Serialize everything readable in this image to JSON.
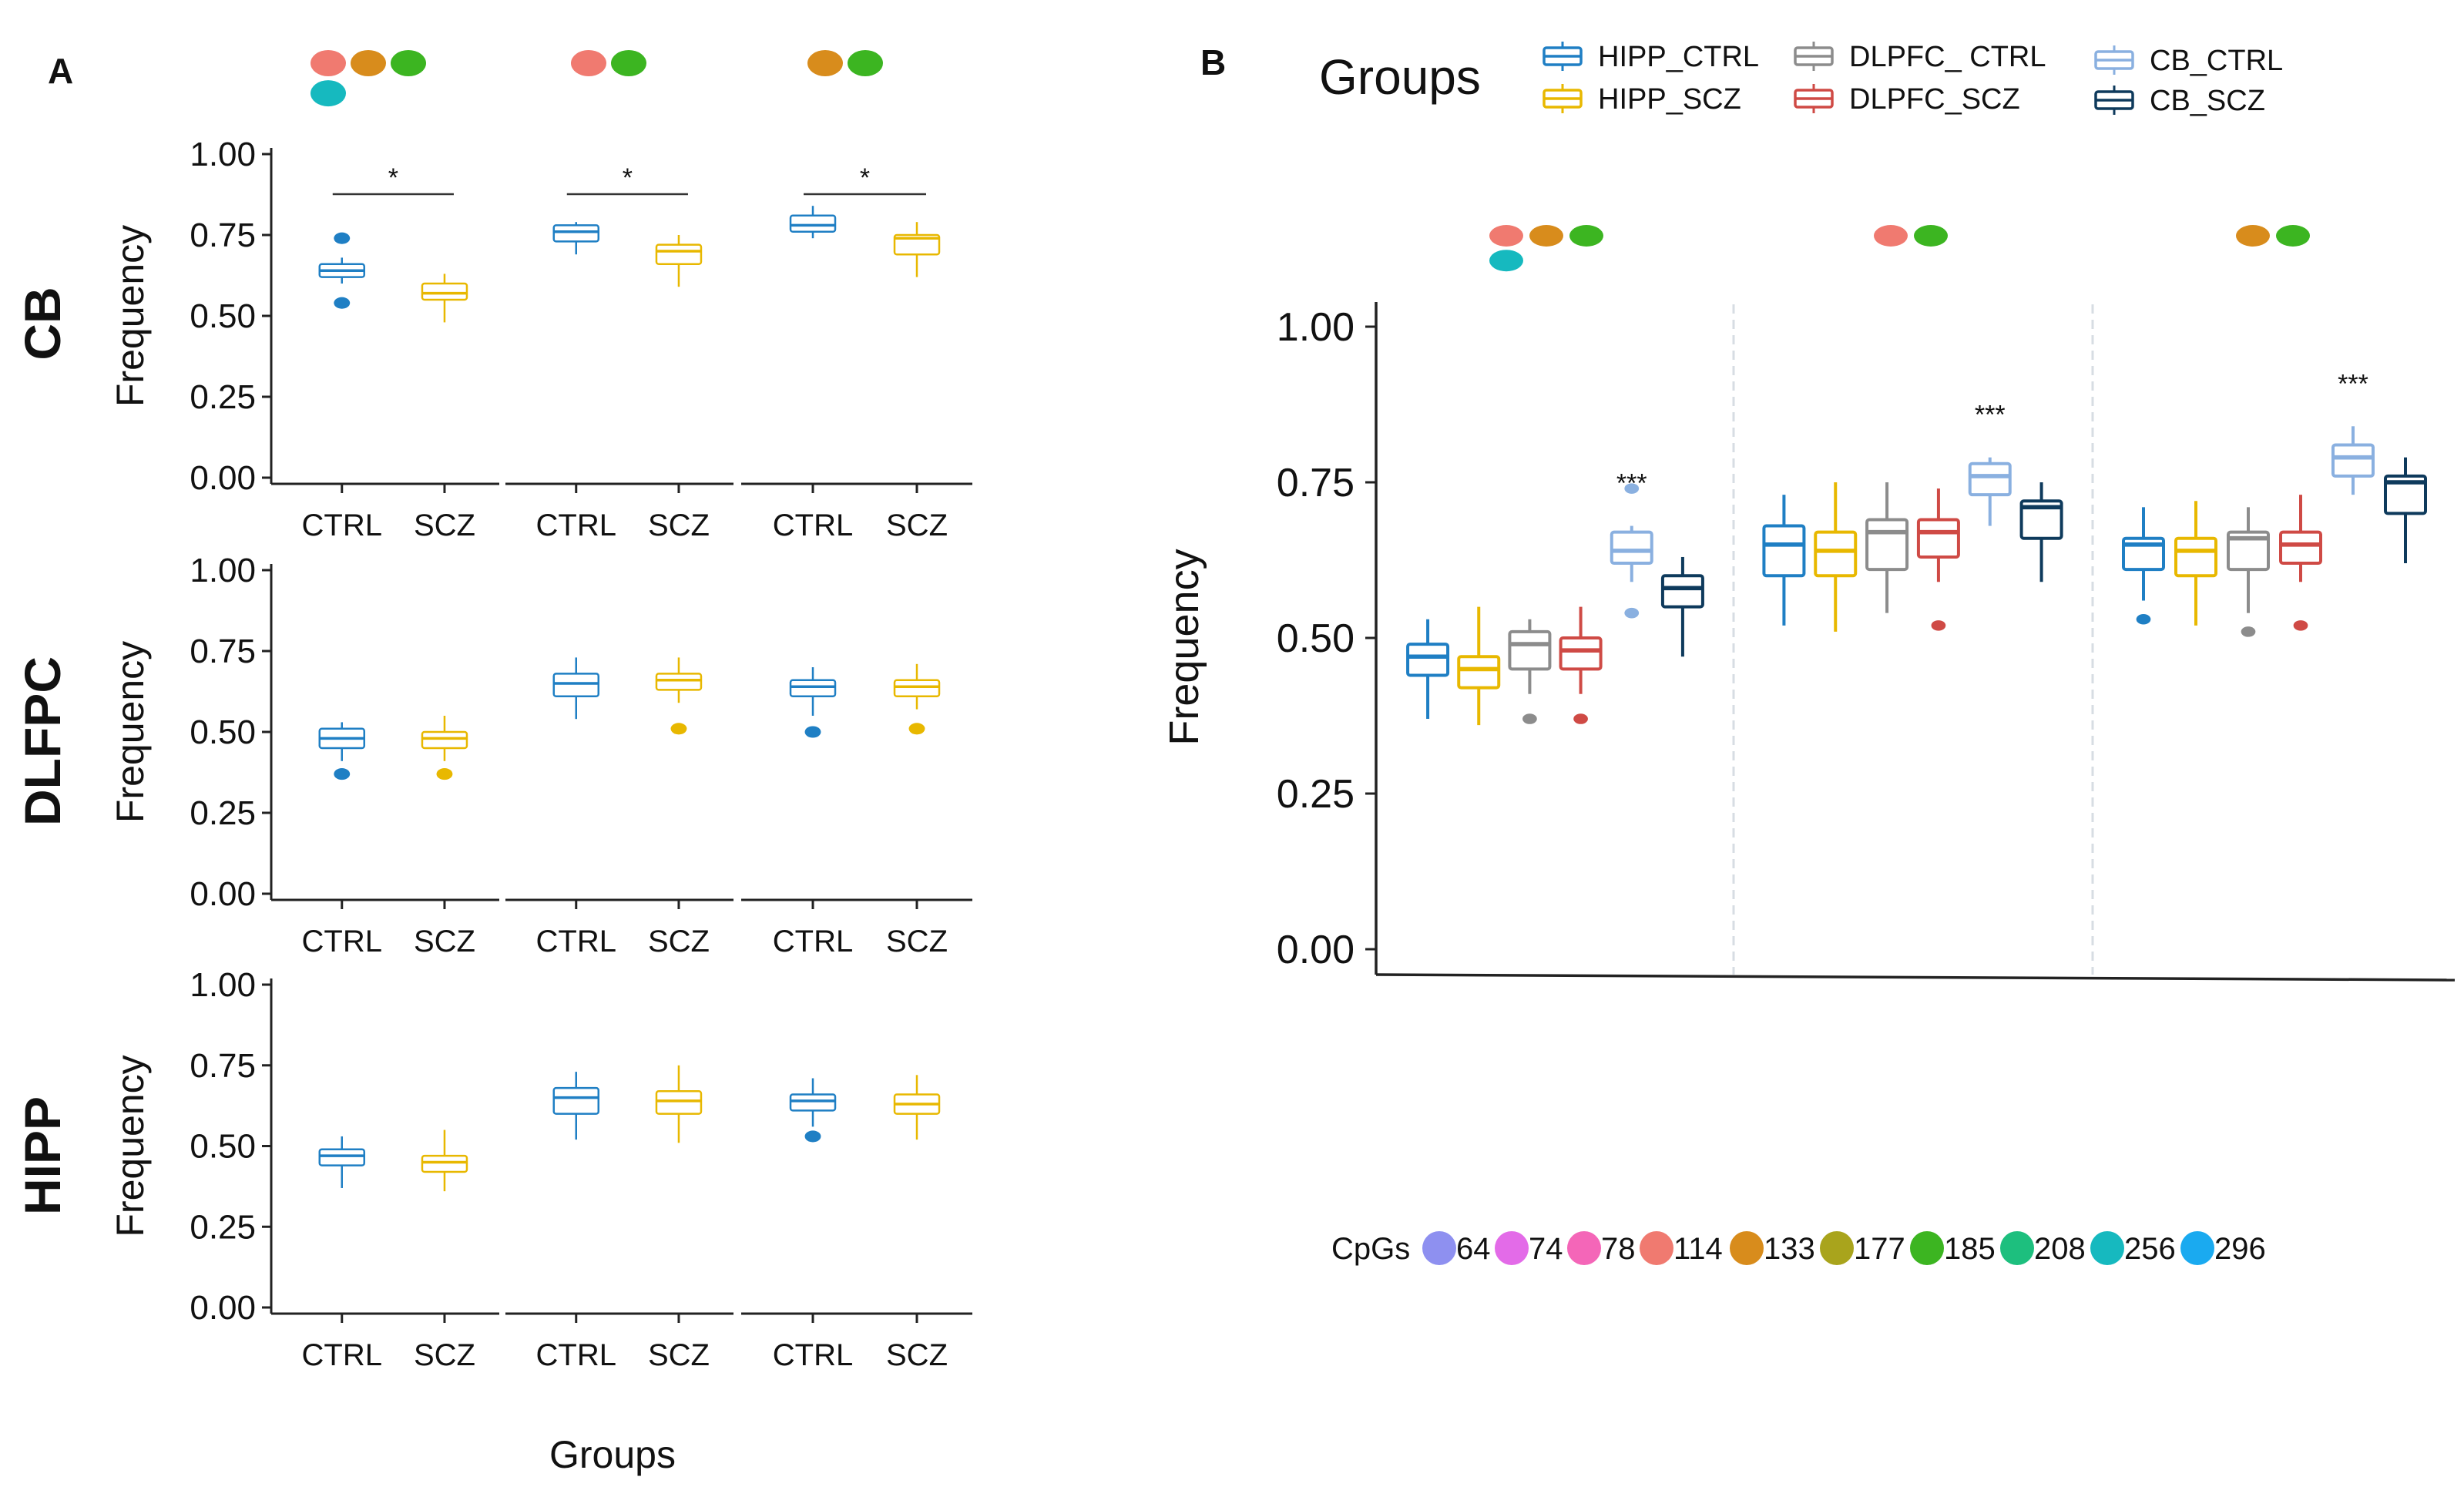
{
  "panel_a": {
    "letter": "A",
    "x_axis_title": "Groups",
    "y_axis_title": "Frequency"
  },
  "panel_b": {
    "letter": "B",
    "legend_title": "Groups",
    "y_axis_title": "Frequency"
  },
  "cpg_legend": {
    "title": "CpGs",
    "items": [
      {
        "label": "64",
        "color": "#8e90f0"
      },
      {
        "label": "74",
        "color": "#e36be8"
      },
      {
        "label": "78",
        "color": "#f466b8"
      },
      {
        "label": "114",
        "color": "#f07a70"
      },
      {
        "label": "133",
        "color": "#d88c1c"
      },
      {
        "label": "177",
        "color": "#a9a41c"
      },
      {
        "label": "185",
        "color": "#3cb521"
      },
      {
        "label": "208",
        "color": "#1dbf7e"
      },
      {
        "label": "256",
        "color": "#16b9bf"
      },
      {
        "label": "296",
        "color": "#1aaaf0"
      }
    ]
  },
  "chart_data": [
    {
      "type": "box",
      "panel": "A",
      "ylabel": "Frequency",
      "xlabel": "Groups",
      "ylim": [
        0,
        1
      ],
      "yticks": [
        "0.00",
        "0.25",
        "0.50",
        "0.75",
        "1.00"
      ],
      "facet_cpg_sets": [
        [
          "114",
          "133",
          "185",
          "256"
        ],
        [
          "114",
          "185"
        ],
        [
          "133",
          "185"
        ]
      ],
      "categories": [
        "CTRL",
        "SCZ"
      ],
      "group_colors": {
        "CTRL": "#1f7fc4",
        "SCZ": "#e8b800"
      },
      "rows": [
        {
          "region": "CB",
          "facets": [
            {
              "sig": "*",
              "boxes": [
                {
                  "group": "CTRL",
                  "min": 0.6,
                  "q1": 0.62,
                  "median": 0.64,
                  "q3": 0.66,
                  "max": 0.68,
                  "outliers": [
                    0.74,
                    0.54
                  ]
                },
                {
                  "group": "SCZ",
                  "min": 0.48,
                  "q1": 0.55,
                  "median": 0.57,
                  "q3": 0.6,
                  "max": 0.63,
                  "outliers": []
                }
              ]
            },
            {
              "sig": "*",
              "boxes": [
                {
                  "group": "CTRL",
                  "min": 0.69,
                  "q1": 0.73,
                  "median": 0.76,
                  "q3": 0.78,
                  "max": 0.79,
                  "outliers": []
                },
                {
                  "group": "SCZ",
                  "min": 0.59,
                  "q1": 0.66,
                  "median": 0.7,
                  "q3": 0.72,
                  "max": 0.75,
                  "outliers": []
                }
              ]
            },
            {
              "sig": "*",
              "boxes": [
                {
                  "group": "CTRL",
                  "min": 0.74,
                  "q1": 0.76,
                  "median": 0.78,
                  "q3": 0.81,
                  "max": 0.84,
                  "outliers": []
                },
                {
                  "group": "SCZ",
                  "min": 0.62,
                  "q1": 0.69,
                  "median": 0.74,
                  "q3": 0.75,
                  "max": 0.79,
                  "outliers": []
                }
              ]
            }
          ]
        },
        {
          "region": "DLFPC",
          "facets": [
            {
              "sig": "",
              "boxes": [
                {
                  "group": "CTRL",
                  "min": 0.41,
                  "q1": 0.45,
                  "median": 0.48,
                  "q3": 0.51,
                  "max": 0.53,
                  "outliers": [
                    0.37
                  ]
                },
                {
                  "group": "SCZ",
                  "min": 0.41,
                  "q1": 0.45,
                  "median": 0.48,
                  "q3": 0.5,
                  "max": 0.55,
                  "outliers": [
                    0.37
                  ]
                }
              ]
            },
            {
              "sig": "",
              "boxes": [
                {
                  "group": "CTRL",
                  "min": 0.54,
                  "q1": 0.61,
                  "median": 0.65,
                  "q3": 0.68,
                  "max": 0.73,
                  "outliers": []
                },
                {
                  "group": "SCZ",
                  "min": 0.59,
                  "q1": 0.63,
                  "median": 0.66,
                  "q3": 0.68,
                  "max": 0.73,
                  "outliers": [
                    0.51
                  ]
                }
              ]
            },
            {
              "sig": "",
              "boxes": [
                {
                  "group": "CTRL",
                  "min": 0.55,
                  "q1": 0.61,
                  "median": 0.64,
                  "q3": 0.66,
                  "max": 0.7,
                  "outliers": [
                    0.5
                  ]
                },
                {
                  "group": "SCZ",
                  "min": 0.57,
                  "q1": 0.61,
                  "median": 0.64,
                  "q3": 0.66,
                  "max": 0.71,
                  "outliers": [
                    0.51
                  ]
                }
              ]
            }
          ]
        },
        {
          "region": "HIPP",
          "facets": [
            {
              "sig": "",
              "boxes": [
                {
                  "group": "CTRL",
                  "min": 0.37,
                  "q1": 0.44,
                  "median": 0.47,
                  "q3": 0.49,
                  "max": 0.53,
                  "outliers": []
                },
                {
                  "group": "SCZ",
                  "min": 0.36,
                  "q1": 0.42,
                  "median": 0.45,
                  "q3": 0.47,
                  "max": 0.55,
                  "outliers": []
                }
              ]
            },
            {
              "sig": "",
              "boxes": [
                {
                  "group": "CTRL",
                  "min": 0.52,
                  "q1": 0.6,
                  "median": 0.65,
                  "q3": 0.68,
                  "max": 0.73,
                  "outliers": []
                },
                {
                  "group": "SCZ",
                  "min": 0.51,
                  "q1": 0.6,
                  "median": 0.64,
                  "q3": 0.67,
                  "max": 0.75,
                  "outliers": []
                }
              ]
            },
            {
              "sig": "",
              "boxes": [
                {
                  "group": "CTRL",
                  "min": 0.56,
                  "q1": 0.61,
                  "median": 0.64,
                  "q3": 0.66,
                  "max": 0.71,
                  "outliers": [
                    0.53
                  ]
                },
                {
                  "group": "SCZ",
                  "min": 0.52,
                  "q1": 0.6,
                  "median": 0.63,
                  "q3": 0.66,
                  "max": 0.72,
                  "outliers": []
                }
              ]
            }
          ]
        }
      ]
    },
    {
      "type": "box",
      "panel": "B",
      "ylabel": "Frequency",
      "ylim": [
        0,
        1
      ],
      "yticks": [
        "0.00",
        "0.25",
        "0.50",
        "0.75",
        "1.00"
      ],
      "legend": {
        "title": "Groups",
        "position": "top",
        "entries": [
          {
            "name": "HIPP_CTRL",
            "color": "#1f7fc4"
          },
          {
            "name": "HIPP_SCZ",
            "color": "#e8b800"
          },
          {
            "name": "DLPFC_ CTRL",
            "color": "#8c8c8c"
          },
          {
            "name": "DLPFC_SCZ",
            "color": "#cf4a45"
          },
          {
            "name": "CB_CTRL",
            "color": "#8ab0e0"
          },
          {
            "name": "CB_SCZ",
            "color": "#0e3a5c"
          }
        ]
      },
      "facet_cpg_sets": [
        [
          "114",
          "133",
          "185",
          "256"
        ],
        [
          "114",
          "185"
        ],
        [
          "133",
          "185"
        ]
      ],
      "series_order": [
        "HIPP_CTRL",
        "HIPP_SCZ",
        "DLPFC_ CTRL",
        "DLPFC_SCZ",
        "CB_CTRL",
        "CB_SCZ"
      ],
      "facets": [
        {
          "sig": "***",
          "sig_over": "CB_CTRL",
          "boxes": [
            {
              "min": 0.37,
              "q1": 0.44,
              "median": 0.47,
              "q3": 0.49,
              "max": 0.53,
              "outliers": []
            },
            {
              "min": 0.36,
              "q1": 0.42,
              "median": 0.45,
              "q3": 0.47,
              "max": 0.55,
              "outliers": []
            },
            {
              "min": 0.41,
              "q1": 0.45,
              "median": 0.49,
              "q3": 0.51,
              "max": 0.53,
              "outliers": [
                0.37
              ]
            },
            {
              "min": 0.41,
              "q1": 0.45,
              "median": 0.48,
              "q3": 0.5,
              "max": 0.55,
              "outliers": [
                0.37
              ]
            },
            {
              "min": 0.59,
              "q1": 0.62,
              "median": 0.64,
              "q3": 0.67,
              "max": 0.68,
              "outliers": [
                0.74,
                0.54
              ]
            },
            {
              "min": 0.47,
              "q1": 0.55,
              "median": 0.58,
              "q3": 0.6,
              "max": 0.63,
              "outliers": []
            }
          ]
        },
        {
          "sig": "***",
          "sig_over": "CB_CTRL",
          "boxes": [
            {
              "min": 0.52,
              "q1": 0.6,
              "median": 0.65,
              "q3": 0.68,
              "max": 0.73,
              "outliers": []
            },
            {
              "min": 0.51,
              "q1": 0.6,
              "median": 0.64,
              "q3": 0.67,
              "max": 0.75,
              "outliers": []
            },
            {
              "min": 0.54,
              "q1": 0.61,
              "median": 0.67,
              "q3": 0.69,
              "max": 0.75,
              "outliers": []
            },
            {
              "min": 0.59,
              "q1": 0.63,
              "median": 0.67,
              "q3": 0.69,
              "max": 0.74,
              "outliers": [
                0.52
              ]
            },
            {
              "min": 0.68,
              "q1": 0.73,
              "median": 0.76,
              "q3": 0.78,
              "max": 0.79,
              "outliers": []
            },
            {
              "min": 0.59,
              "q1": 0.66,
              "median": 0.71,
              "q3": 0.72,
              "max": 0.75,
              "outliers": []
            }
          ]
        },
        {
          "sig": "***",
          "sig_over": "CB_CTRL",
          "boxes": [
            {
              "min": 0.56,
              "q1": 0.61,
              "median": 0.65,
              "q3": 0.66,
              "max": 0.71,
              "outliers": [
                0.53
              ]
            },
            {
              "min": 0.52,
              "q1": 0.6,
              "median": 0.64,
              "q3": 0.66,
              "max": 0.72,
              "outliers": []
            },
            {
              "min": 0.54,
              "q1": 0.61,
              "median": 0.66,
              "q3": 0.67,
              "max": 0.71,
              "outliers": [
                0.51
              ]
            },
            {
              "min": 0.59,
              "q1": 0.62,
              "median": 0.65,
              "q3": 0.67,
              "max": 0.73,
              "outliers": [
                0.52
              ]
            },
            {
              "min": 0.73,
              "q1": 0.76,
              "median": 0.79,
              "q3": 0.81,
              "max": 0.84,
              "outliers": []
            },
            {
              "min": 0.62,
              "q1": 0.7,
              "median": 0.75,
              "q3": 0.76,
              "max": 0.79,
              "outliers": []
            }
          ]
        }
      ]
    }
  ]
}
